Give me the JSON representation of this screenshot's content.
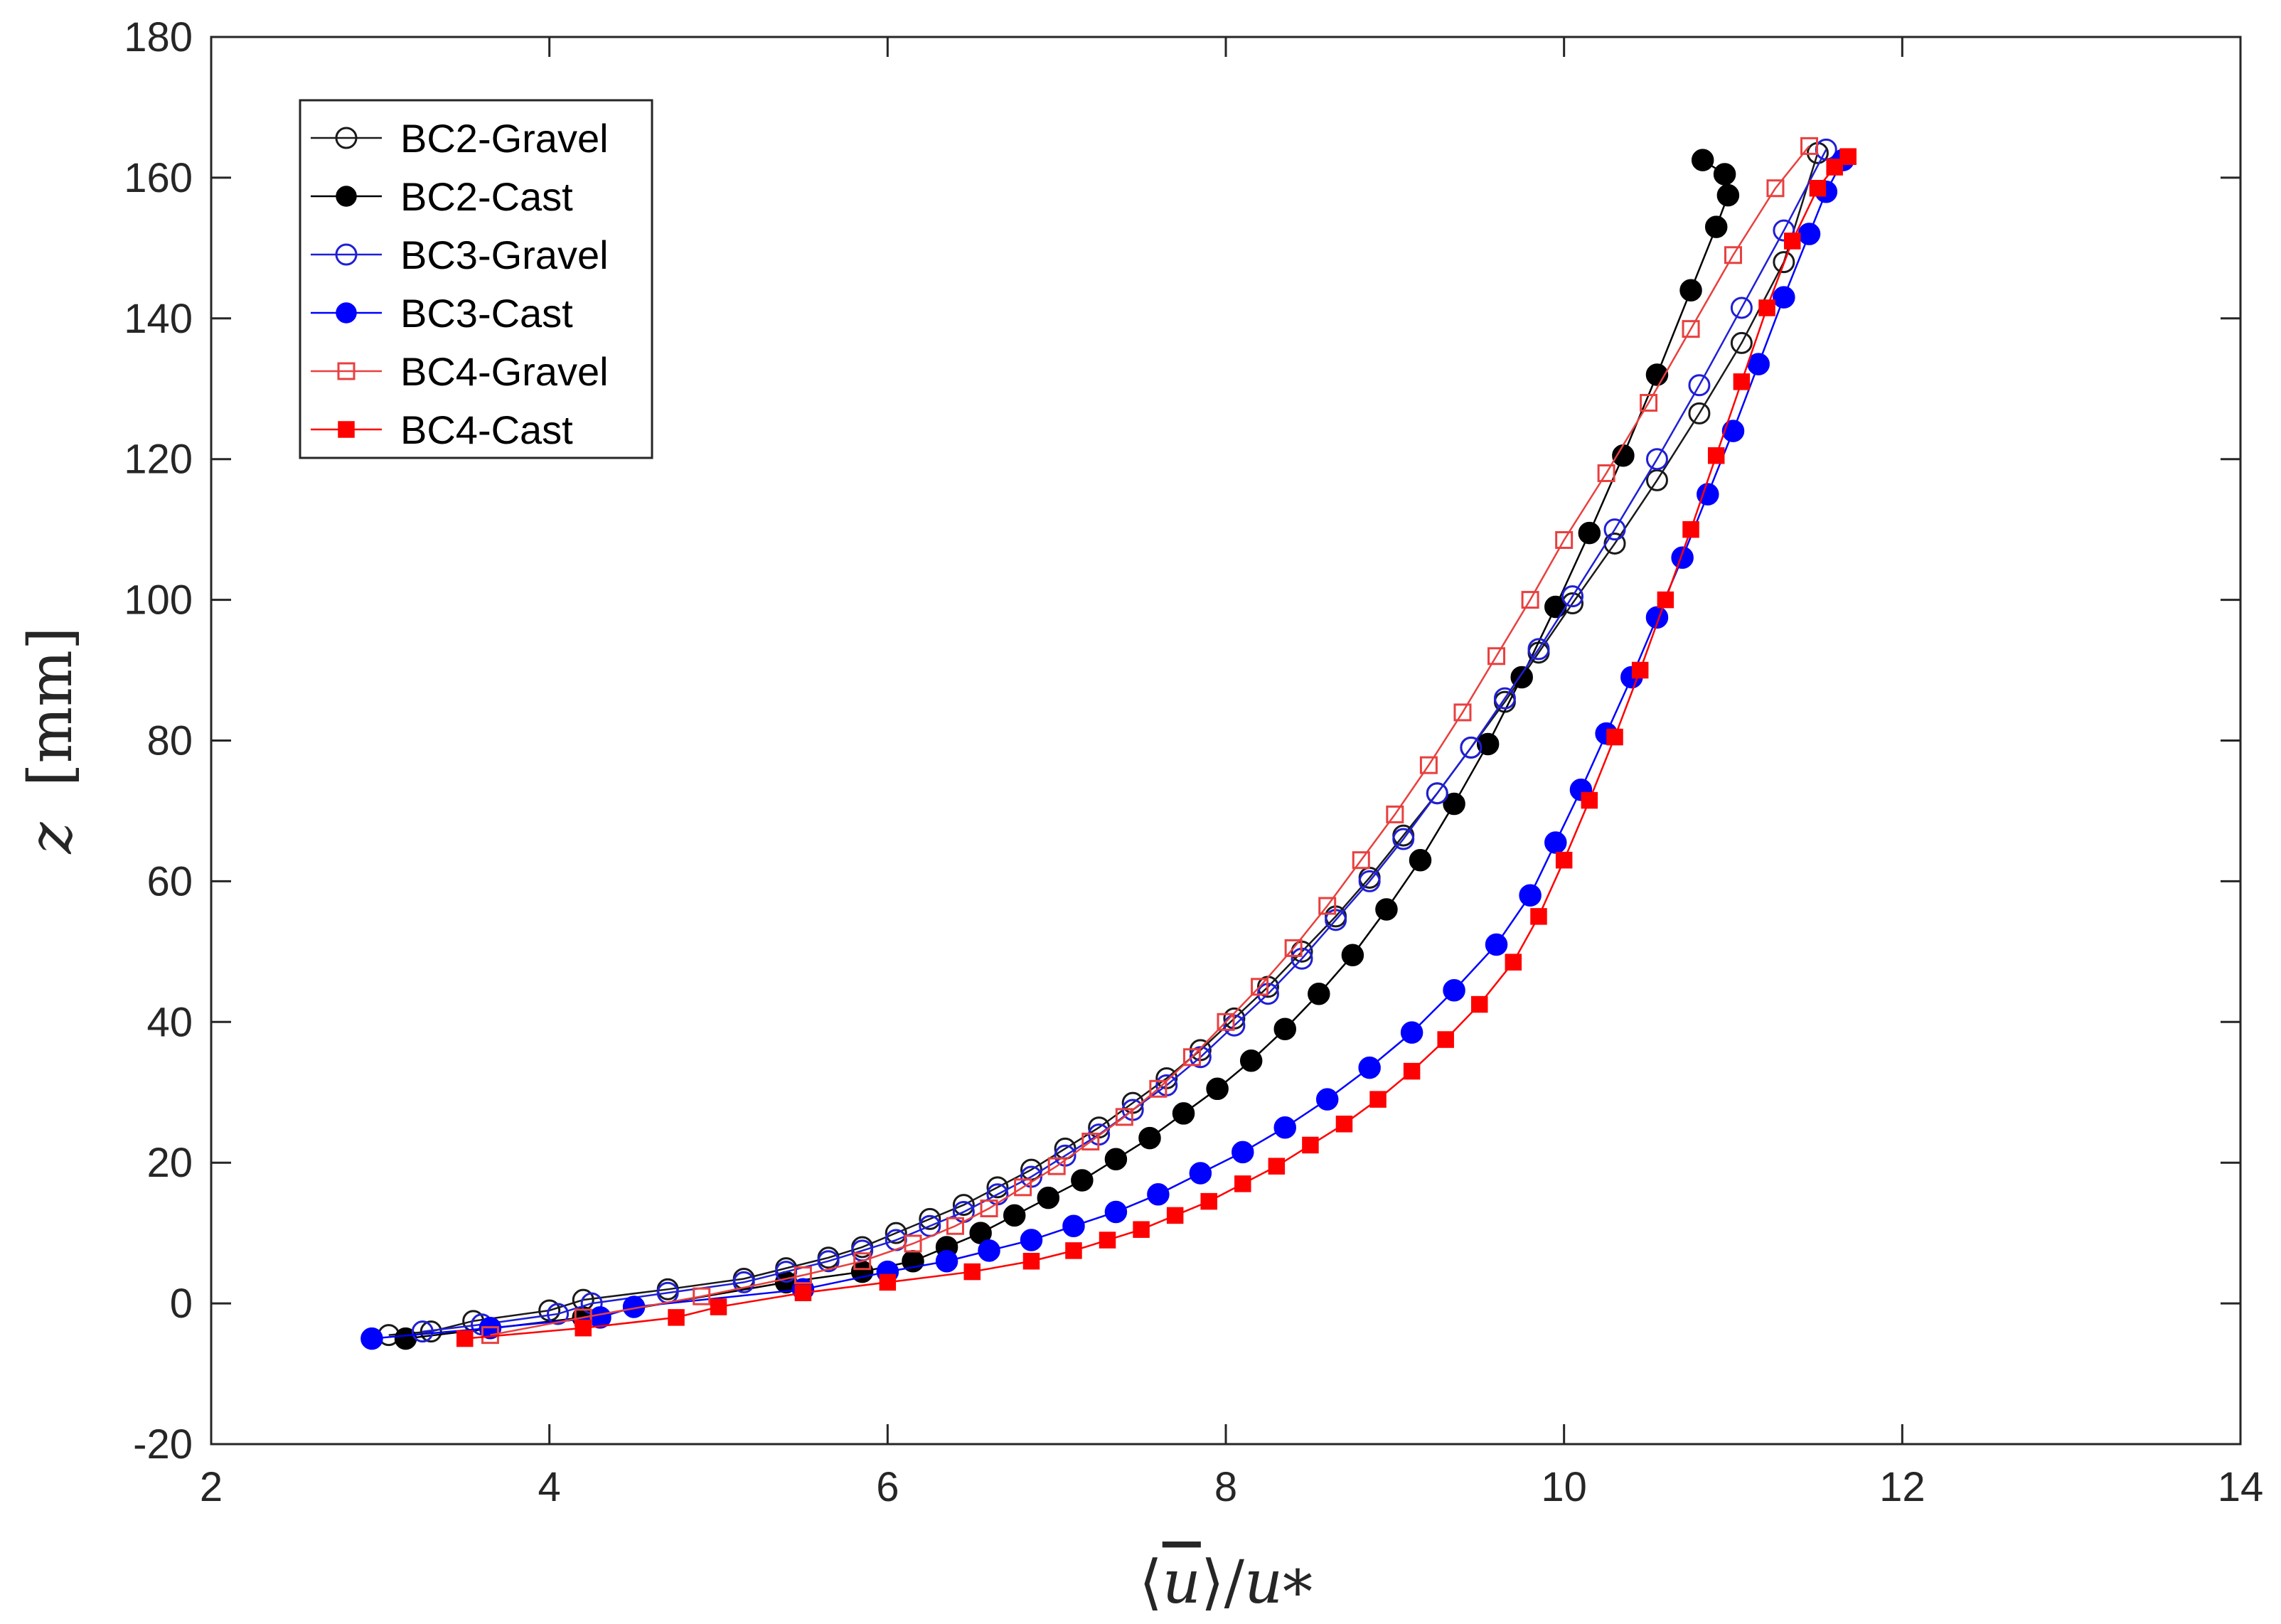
{
  "chart_data": {
    "type": "scatter",
    "title": "",
    "xlabel": "⟨u̅⟩/u*",
    "xlabel_parts": {
      "open": "⟨",
      "var": "u",
      "close": "⟩",
      "slash": "/",
      "base": "u",
      "sub": "*"
    },
    "ylabel": "z   [mm]",
    "ylabel_parts": {
      "var": "z",
      "unit": "[mm]"
    },
    "xlim": [
      2,
      14
    ],
    "ylim": [
      -20,
      180
    ],
    "xticks": [
      2,
      4,
      6,
      8,
      10,
      12,
      14
    ],
    "yticks": [
      -20,
      0,
      20,
      40,
      60,
      80,
      100,
      120,
      140,
      160,
      180
    ],
    "grid": false,
    "legend_position": "top-left",
    "series": [
      {
        "name": "BC2-Gravel",
        "color": "#1a1a1a",
        "marker": "circle",
        "filled": false,
        "x": [
          3.05,
          3.3,
          3.55,
          4.0,
          4.2,
          4.7,
          5.15,
          5.4,
          5.65,
          5.85,
          6.05,
          6.25,
          6.45,
          6.65,
          6.85,
          7.05,
          7.25,
          7.45,
          7.65,
          7.85,
          8.05,
          8.25,
          8.45,
          8.65,
          8.85,
          9.05,
          9.25,
          9.45,
          9.65,
          9.85,
          10.05,
          10.3,
          10.55,
          10.8,
          11.05,
          11.3,
          11.5
        ],
        "y": [
          -4.5,
          -4.0,
          -2.5,
          -1.0,
          0.5,
          2.0,
          3.5,
          5.0,
          6.5,
          8.0,
          10.0,
          12.0,
          14.0,
          16.5,
          19.0,
          22.0,
          25.0,
          28.5,
          32.0,
          36.0,
          40.5,
          45.0,
          50.0,
          55.0,
          60.5,
          66.5,
          72.5,
          79.0,
          85.5,
          92.5,
          99.5,
          108.0,
          117.0,
          126.5,
          136.5,
          148.0,
          163.5
        ]
      },
      {
        "name": "BC2-Cast",
        "color": "#000000",
        "marker": "circle",
        "filled": true,
        "x": [
          3.15,
          4.2,
          5.4,
          5.85,
          6.15,
          6.35,
          6.55,
          6.75,
          6.95,
          7.15,
          7.35,
          7.55,
          7.75,
          7.95,
          8.15,
          8.35,
          8.55,
          8.75,
          8.95,
          9.15,
          9.35,
          9.55,
          9.75,
          9.95,
          10.15,
          10.35,
          10.55,
          10.75,
          10.9,
          10.97,
          10.95,
          10.82
        ],
        "y": [
          -5.0,
          -2.0,
          3.0,
          4.5,
          6.0,
          8.0,
          10.0,
          12.5,
          15.0,
          17.5,
          20.5,
          23.5,
          27.0,
          30.5,
          34.5,
          39.0,
          44.0,
          49.5,
          56.0,
          63.0,
          71.0,
          79.5,
          89.0,
          99.0,
          109.5,
          120.5,
          132.0,
          144.0,
          153.0,
          157.5,
          160.5,
          162.5
        ]
      },
      {
        "name": "BC3-Gravel",
        "color": "#1f1fd6",
        "marker": "circle",
        "filled": false,
        "x": [
          3.25,
          3.6,
          4.05,
          4.25,
          4.7,
          5.15,
          5.4,
          5.65,
          5.85,
          6.05,
          6.25,
          6.45,
          6.65,
          6.85,
          7.05,
          7.25,
          7.45,
          7.65,
          7.85,
          8.05,
          8.25,
          8.45,
          8.65,
          8.85,
          9.05,
          9.25,
          9.45,
          9.65,
          9.85,
          10.05,
          10.3,
          10.55,
          10.8,
          11.05,
          11.3,
          11.55
        ],
        "y": [
          -4.0,
          -3.0,
          -1.5,
          0.0,
          1.5,
          3.0,
          4.5,
          6.0,
          7.5,
          9.0,
          11.0,
          13.0,
          15.5,
          18.0,
          21.0,
          24.0,
          27.5,
          31.0,
          35.0,
          39.5,
          44.0,
          49.0,
          54.5,
          60.0,
          66.0,
          72.5,
          79.0,
          86.0,
          93.0,
          100.5,
          110.0,
          120.0,
          130.5,
          141.5,
          152.5,
          164.0
        ]
      },
      {
        "name": "BC3-Cast",
        "color": "#0000ff",
        "marker": "circle",
        "filled": true,
        "x": [
          2.95,
          3.65,
          4.3,
          4.5,
          5.5,
          6.0,
          6.35,
          6.6,
          6.85,
          7.1,
          7.35,
          7.6,
          7.85,
          8.1,
          8.35,
          8.6,
          8.85,
          9.1,
          9.35,
          9.6,
          9.8,
          9.95,
          10.1,
          10.25,
          10.4,
          10.55,
          10.7,
          10.85,
          11.0,
          11.15,
          11.3,
          11.45,
          11.55,
          11.65
        ],
        "y": [
          -5.0,
          -3.5,
          -2.0,
          -0.5,
          2.0,
          4.5,
          6.0,
          7.5,
          9.0,
          11.0,
          13.0,
          15.5,
          18.5,
          21.5,
          25.0,
          29.0,
          33.5,
          38.5,
          44.5,
          51.0,
          58.0,
          65.5,
          73.0,
          81.0,
          89.0,
          97.5,
          106.0,
          115.0,
          124.0,
          133.5,
          143.0,
          152.0,
          158.0,
          162.5
        ]
      },
      {
        "name": "BC4-Gravel",
        "color": "#e8403f",
        "marker": "square",
        "filled": false,
        "x": [
          3.65,
          4.2,
          4.9,
          5.5,
          5.85,
          6.15,
          6.4,
          6.6,
          6.8,
          7.0,
          7.2,
          7.4,
          7.6,
          7.8,
          8.0,
          8.2,
          8.4,
          8.6,
          8.8,
          9.0,
          9.2,
          9.4,
          9.6,
          9.8,
          10.0,
          10.25,
          10.5,
          10.75,
          11.0,
          11.25,
          11.45
        ],
        "y": [
          -4.5,
          -2.0,
          1.0,
          4.0,
          6.0,
          8.5,
          11.0,
          13.5,
          16.5,
          19.5,
          23.0,
          26.5,
          30.5,
          35.0,
          40.0,
          45.0,
          50.5,
          56.5,
          63.0,
          69.5,
          76.5,
          84.0,
          92.0,
          100.0,
          108.5,
          118.0,
          128.0,
          138.5,
          149.0,
          158.5,
          164.5
        ]
      },
      {
        "name": "BC4-Cast",
        "color": "#ff0000",
        "marker": "square",
        "filled": true,
        "x": [
          3.5,
          4.2,
          4.75,
          5.0,
          5.5,
          6.0,
          6.5,
          6.85,
          7.1,
          7.3,
          7.5,
          7.7,
          7.9,
          8.1,
          8.3,
          8.5,
          8.7,
          8.9,
          9.1,
          9.3,
          9.5,
          9.7,
          9.85,
          10.0,
          10.15,
          10.3,
          10.45,
          10.6,
          10.75,
          10.9,
          11.05,
          11.2,
          11.35,
          11.5,
          11.6,
          11.68
        ],
        "y": [
          -5.0,
          -3.5,
          -2.0,
          -0.5,
          1.5,
          3.0,
          4.5,
          6.0,
          7.5,
          9.0,
          10.5,
          12.5,
          14.5,
          17.0,
          19.5,
          22.5,
          25.5,
          29.0,
          33.0,
          37.5,
          42.5,
          48.5,
          55.0,
          63.0,
          71.5,
          80.5,
          90.0,
          100.0,
          110.0,
          120.5,
          131.0,
          141.5,
          151.0,
          158.5,
          161.5,
          163.0
        ]
      }
    ]
  }
}
